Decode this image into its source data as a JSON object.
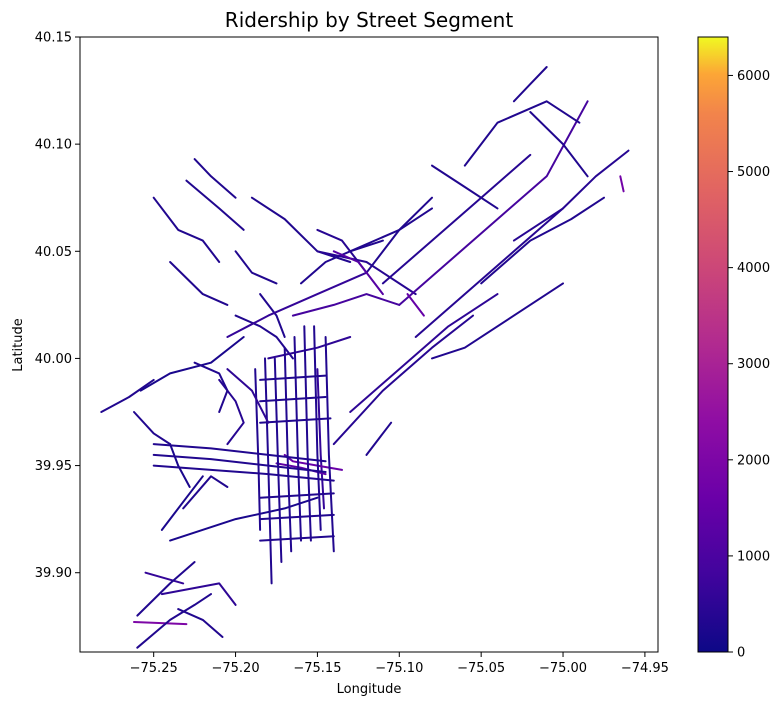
{
  "chart_data": {
    "type": "map",
    "title": "Ridership by Street Segment",
    "xlabel": "Longitude",
    "ylabel": "Latitude",
    "xlim": [
      -75.295,
      -74.942
    ],
    "ylim": [
      39.863,
      40.15
    ],
    "x_ticks": [
      -75.25,
      -75.2,
      -75.15,
      -75.1,
      -75.05,
      -75.0,
      -74.95
    ],
    "x_tick_labels": [
      "−75.25",
      "−75.20",
      "−75.15",
      "−75.10",
      "−75.05",
      "−75.00",
      "−74.95"
    ],
    "y_ticks": [
      39.9,
      39.95,
      40.0,
      40.05,
      40.1,
      40.15
    ],
    "y_tick_labels": [
      "39.90",
      "39.95",
      "40.00",
      "40.05",
      "40.10",
      "40.15"
    ],
    "colorbar": {
      "colormap": "plasma",
      "range": [
        0,
        6400
      ],
      "ticks": [
        0,
        1000,
        2000,
        3000,
        4000,
        5000,
        6000
      ],
      "tick_labels": [
        "0",
        "1000",
        "2000",
        "3000",
        "4000",
        "5000",
        "6000"
      ]
    },
    "segments": [
      {
        "lon": [
          -75.262,
          -75.23
        ],
        "lat": [
          39.877,
          39.876
        ],
        "value": 2000
      },
      {
        "lon": [
          -75.255,
          -75.232
        ],
        "lat": [
          39.9,
          39.895
        ],
        "value": 600
      },
      {
        "lon": [
          -75.245,
          -75.21,
          -75.2
        ],
        "lat": [
          39.89,
          39.895,
          39.885
        ],
        "value": 500
      },
      {
        "lon": [
          -75.26,
          -75.24,
          -75.225
        ],
        "lat": [
          39.88,
          39.895,
          39.905
        ],
        "value": 300
      },
      {
        "lon": [
          -75.24,
          -75.2,
          -75.17,
          -75.15
        ],
        "lat": [
          39.915,
          39.925,
          39.93,
          39.935
        ],
        "value": 200
      },
      {
        "lon": [
          -75.232,
          -75.215,
          -75.205
        ],
        "lat": [
          39.93,
          39.945,
          39.94
        ],
        "value": 300
      },
      {
        "lon": [
          -75.245,
          -75.23,
          -75.22
        ],
        "lat": [
          39.92,
          39.935,
          39.945
        ],
        "value": 200
      },
      {
        "lon": [
          -75.24,
          -75.235,
          -75.228
        ],
        "lat": [
          39.96,
          39.95,
          39.94
        ],
        "value": 200
      },
      {
        "lon": [
          -75.262,
          -75.25,
          -75.24
        ],
        "lat": [
          39.975,
          39.965,
          39.96
        ],
        "value": 300
      },
      {
        "lon": [
          -75.282,
          -75.265,
          -75.25
        ],
        "lat": [
          39.975,
          39.982,
          39.99
        ],
        "value": 300
      },
      {
        "lon": [
          -75.258,
          -75.24,
          -75.215,
          -75.195
        ],
        "lat": [
          39.985,
          39.993,
          39.998,
          40.01
        ],
        "value": 200
      },
      {
        "lon": [
          -75.25,
          -75.235,
          -75.22,
          -75.21
        ],
        "lat": [
          40.075,
          40.06,
          40.055,
          40.045
        ],
        "value": 300
      },
      {
        "lon": [
          -75.24,
          -75.22,
          -75.205
        ],
        "lat": [
          40.045,
          40.03,
          40.025
        ],
        "value": 300
      },
      {
        "lon": [
          -75.225,
          -75.215,
          -75.2
        ],
        "lat": [
          40.093,
          40.085,
          40.075
        ],
        "value": 300
      },
      {
        "lon": [
          -75.23,
          -75.21,
          -75.195
        ],
        "lat": [
          40.083,
          40.07,
          40.06
        ],
        "value": 300
      },
      {
        "lon": [
          -75.21,
          -75.2,
          -75.195,
          -75.205
        ],
        "lat": [
          39.99,
          39.98,
          39.97,
          39.96
        ],
        "value": 400
      },
      {
        "lon": [
          -75.2,
          -75.185,
          -75.175,
          -75.165
        ],
        "lat": [
          40.02,
          40.015,
          40.01,
          40.0
        ],
        "value": 300
      },
      {
        "lon": [
          -75.2,
          -75.19,
          -75.175
        ],
        "lat": [
          40.05,
          40.04,
          40.035
        ],
        "value": 300
      },
      {
        "lon": [
          -75.19,
          -75.17,
          -75.15,
          -75.13
        ],
        "lat": [
          40.075,
          40.065,
          40.05,
          40.045
        ],
        "value": 300
      },
      {
        "lon": [
          -75.185,
          -75.175,
          -75.17
        ],
        "lat": [
          40.03,
          40.02,
          40.01
        ],
        "value": 300
      },
      {
        "lon": [
          -75.15,
          -75.135,
          -75.12
        ],
        "lat": [
          40.06,
          40.055,
          40.04
        ],
        "value": 400
      },
      {
        "lon": [
          -75.205,
          -75.18,
          -75.15,
          -75.12
        ],
        "lat": [
          40.01,
          40.02,
          40.03,
          40.04
        ],
        "value": 600
      },
      {
        "lon": [
          -75.165,
          -75.14,
          -75.12,
          -75.1
        ],
        "lat": [
          40.02,
          40.025,
          40.03,
          40.025
        ],
        "value": 900
      },
      {
        "lon": [
          -75.18,
          -75.15,
          -75.13
        ],
        "lat": [
          40.0,
          40.005,
          40.01
        ],
        "value": 500
      },
      {
        "lon": [
          -75.16,
          -75.145,
          -75.13,
          -75.11
        ],
        "lat": [
          40.035,
          40.045,
          40.05,
          40.055
        ],
        "value": 300
      },
      {
        "lon": [
          -75.15,
          -75.148,
          -75.146
        ],
        "lat": [
          39.995,
          39.955,
          39.93
        ],
        "value": 600
      },
      {
        "lon": [
          -75.15,
          -75.12,
          -75.09
        ],
        "lat": [
          40.05,
          40.045,
          40.03
        ],
        "value": 400
      },
      {
        "lon": [
          -75.12,
          -75.1,
          -75.08
        ],
        "lat": [
          40.04,
          40.06,
          40.075
        ],
        "value": 300
      },
      {
        "lon": [
          -75.1,
          -75.07,
          -75.04,
          -75.01,
          -74.985
        ],
        "lat": [
          40.025,
          40.045,
          40.065,
          40.085,
          40.12
        ],
        "value": 900
      },
      {
        "lon": [
          -75.11,
          -75.08,
          -75.05,
          -75.02
        ],
        "lat": [
          40.035,
          40.055,
          40.075,
          40.095
        ],
        "value": 400
      },
      {
        "lon": [
          -75.09,
          -75.06,
          -75.03,
          -75.0
        ],
        "lat": [
          40.01,
          40.03,
          40.05,
          40.07
        ],
        "value": 400
      },
      {
        "lon": [
          -75.14,
          -75.11,
          -75.08,
          -75.055
        ],
        "lat": [
          39.96,
          39.985,
          40.005,
          40.02
        ],
        "value": 400
      },
      {
        "lon": [
          -75.13,
          -75.1,
          -75.07,
          -75.04
        ],
        "lat": [
          39.975,
          39.995,
          40.015,
          40.03
        ],
        "value": 500
      },
      {
        "lon": [
          -75.08,
          -75.06,
          -75.03,
          -75.0
        ],
        "lat": [
          40.0,
          40.005,
          40.02,
          40.035
        ],
        "value": 300
      },
      {
        "lon": [
          -75.03,
          -75.0,
          -74.98,
          -74.96
        ],
        "lat": [
          40.055,
          40.07,
          40.085,
          40.097
        ],
        "value": 400
      },
      {
        "lon": [
          -75.05,
          -75.02,
          -74.995,
          -74.975
        ],
        "lat": [
          40.035,
          40.055,
          40.065,
          40.075
        ],
        "value": 300
      },
      {
        "lon": [
          -75.03,
          -75.02,
          -75.01
        ],
        "lat": [
          40.12,
          40.128,
          40.136
        ],
        "value": 300
      },
      {
        "lon": [
          -75.06,
          -75.04,
          -75.01,
          -74.99
        ],
        "lat": [
          40.09,
          40.11,
          40.12,
          40.11
        ],
        "value": 300
      },
      {
        "lon": [
          -75.08,
          -75.06,
          -75.04
        ],
        "lat": [
          40.09,
          40.08,
          40.07
        ],
        "value": 300
      },
      {
        "lon": [
          -75.02,
          -75.0,
          -74.985
        ],
        "lat": [
          40.115,
          40.1,
          40.085
        ],
        "value": 300
      },
      {
        "lon": [
          -74.965,
          -74.963
        ],
        "lat": [
          40.085,
          40.078
        ],
        "value": 1800
      },
      {
        "lon": [
          -75.17,
          -75.165,
          -75.15,
          -75.135
        ],
        "lat": [
          39.955,
          39.952,
          39.95,
          39.948
        ],
        "value": 1600
      },
      {
        "lon": [
          -75.175,
          -75.16,
          -75.145
        ],
        "lat": [
          39.951,
          39.949,
          39.946
        ],
        "value": 1400
      },
      {
        "lon": [
          -75.25,
          -75.215,
          -75.18,
          -75.145
        ],
        "lat": [
          39.96,
          39.958,
          39.955,
          39.952
        ],
        "value": 300
      },
      {
        "lon": [
          -75.25,
          -75.215,
          -75.18,
          -75.145
        ],
        "lat": [
          39.955,
          39.953,
          39.95,
          39.947
        ],
        "value": 300
      },
      {
        "lon": [
          -75.25,
          -75.215,
          -75.18,
          -75.14
        ],
        "lat": [
          39.95,
          39.948,
          39.946,
          39.943
        ],
        "value": 300
      },
      {
        "lon": [
          -75.182,
          -75.18,
          -75.178
        ],
        "lat": [
          40.0,
          39.95,
          39.895
        ],
        "value": 300
      },
      {
        "lon": [
          -75.176,
          -75.174,
          -75.172
        ],
        "lat": [
          40.0,
          39.95,
          39.905
        ],
        "value": 300
      },
      {
        "lon": [
          -75.17,
          -75.168,
          -75.166
        ],
        "lat": [
          40.005,
          39.95,
          39.91
        ],
        "value": 300
      },
      {
        "lon": [
          -75.164,
          -75.162,
          -75.16
        ],
        "lat": [
          40.01,
          39.955,
          39.915
        ],
        "value": 300
      },
      {
        "lon": [
          -75.158,
          -75.156,
          -75.154
        ],
        "lat": [
          40.015,
          39.955,
          39.915
        ],
        "value": 300
      },
      {
        "lon": [
          -75.152,
          -75.15,
          -75.148
        ],
        "lat": [
          40.015,
          39.955,
          39.92
        ],
        "value": 300
      },
      {
        "lon": [
          -75.145,
          -75.143,
          -75.14
        ],
        "lat": [
          40.01,
          39.955,
          39.91
        ],
        "value": 300
      },
      {
        "lon": [
          -75.188,
          -75.186,
          -75.185
        ],
        "lat": [
          39.995,
          39.95,
          39.92
        ],
        "value": 300
      },
      {
        "lon": [
          -75.185,
          -75.145
        ],
        "lat": [
          39.99,
          39.992
        ],
        "value": 300
      },
      {
        "lon": [
          -75.185,
          -75.145
        ],
        "lat": [
          39.98,
          39.982
        ],
        "value": 300
      },
      {
        "lon": [
          -75.185,
          -75.142
        ],
        "lat": [
          39.97,
          39.972
        ],
        "value": 300
      },
      {
        "lon": [
          -75.185,
          -75.14
        ],
        "lat": [
          39.935,
          39.937
        ],
        "value": 300
      },
      {
        "lon": [
          -75.185,
          -75.14
        ],
        "lat": [
          39.925,
          39.927
        ],
        "value": 300
      },
      {
        "lon": [
          -75.185,
          -75.14
        ],
        "lat": [
          39.915,
          39.917
        ],
        "value": 300
      },
      {
        "lon": [
          -75.26,
          -75.24,
          -75.225,
          -75.215
        ],
        "lat": [
          39.865,
          39.878,
          39.885,
          39.89
        ],
        "value": 300
      },
      {
        "lon": [
          -75.235,
          -75.22,
          -75.208
        ],
        "lat": [
          39.883,
          39.878,
          39.87
        ],
        "value": 300
      },
      {
        "lon": [
          -75.205,
          -75.19,
          -75.18
        ],
        "lat": [
          39.995,
          39.985,
          39.97
        ],
        "value": 500
      },
      {
        "lon": [
          -75.225,
          -75.21,
          -75.205,
          -75.21
        ],
        "lat": [
          39.998,
          39.993,
          39.985,
          39.975
        ],
        "value": 300
      },
      {
        "lon": [
          -75.12,
          -75.115,
          -75.105
        ],
        "lat": [
          39.955,
          39.96,
          39.97
        ],
        "value": 300
      },
      {
        "lon": [
          -75.13,
          -75.1,
          -75.08
        ],
        "lat": [
          40.05,
          40.06,
          40.07
        ],
        "value": 300
      },
      {
        "lon": [
          -75.14,
          -75.125,
          -75.11
        ],
        "lat": [
          40.05,
          40.045,
          40.03
        ],
        "value": 1200
      },
      {
        "lon": [
          -75.095,
          -75.09,
          -75.085
        ],
        "lat": [
          40.03,
          40.025,
          40.02
        ],
        "value": 1500
      }
    ]
  }
}
